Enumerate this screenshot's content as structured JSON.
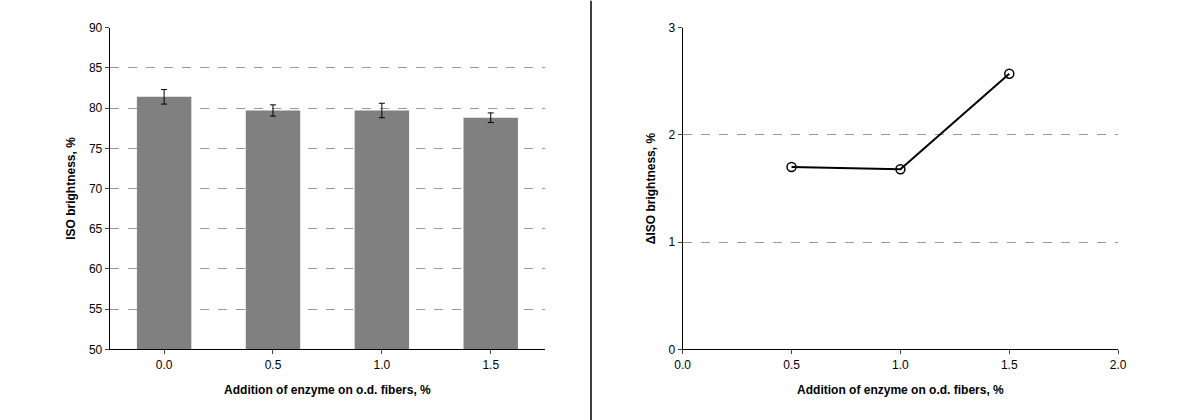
{
  "chart_data": [
    {
      "type": "bar",
      "categories": [
        "0.0",
        "0.5",
        "1.0",
        "1.5"
      ],
      "values": [
        81.4,
        79.7,
        79.7,
        78.8
      ],
      "errors": [
        0.9,
        0.7,
        0.9,
        0.6
      ],
      "color": "#808080",
      "x_label": "Addition of enzyme on o.d. fibers, %",
      "y_label": "ISO brightness, %",
      "ylim": [
        50,
        90
      ],
      "yticks": [
        50,
        55,
        60,
        65,
        70,
        75,
        80,
        85,
        90
      ],
      "grid": true
    },
    {
      "type": "line",
      "x": [
        0.5,
        1.0,
        1.5
      ],
      "values": [
        1.7,
        1.68,
        2.57
      ],
      "color": "#000000",
      "marker": "open_circle",
      "x_label": "Addition of enzyme on o.d. fibers, %",
      "y_label": "ΔISO brightness, %",
      "xlim": [
        0,
        2
      ],
      "xticks": [
        {
          "value": 0,
          "label": "0.0"
        },
        {
          "value": 0.5,
          "label": "0.5"
        },
        {
          "value": 1,
          "label": "1.0"
        },
        {
          "value": 1.5,
          "label": "1.5"
        },
        {
          "value": 2,
          "label": "2.0"
        }
      ],
      "ylim": [
        0,
        3
      ],
      "yticks": [
        0,
        1,
        2,
        3
      ],
      "grid": true
    }
  ]
}
